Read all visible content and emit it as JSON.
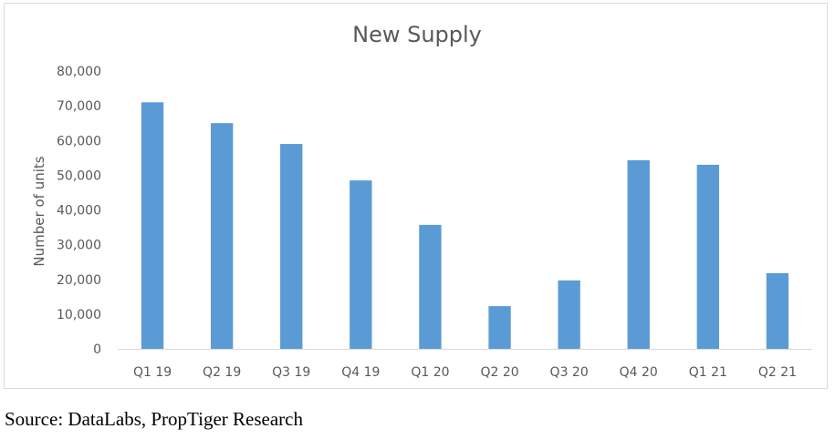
{
  "chart_data": {
    "type": "bar",
    "title": "New Supply",
    "xlabel": "",
    "ylabel": "Number of units",
    "categories": [
      "Q1 19",
      "Q2 19",
      "Q3 19",
      "Q4 19",
      "Q1 20",
      "Q2 20",
      "Q3 20",
      "Q4 20",
      "Q1 21",
      "Q2 21"
    ],
    "values": [
      71000,
      65000,
      59000,
      48500,
      35700,
      12300,
      19700,
      54300,
      53000,
      21800
    ],
    "ylim": [
      0,
      80000
    ],
    "yticks": [
      0,
      10000,
      20000,
      30000,
      40000,
      50000,
      60000,
      70000,
      80000
    ],
    "ytick_labels": [
      "0",
      "10,000",
      "20,000",
      "30,000",
      "40,000",
      "50,000",
      "60,000",
      "70,000",
      "80,000"
    ],
    "grid": false,
    "legend": "none",
    "bar_color": "#5b9bd5"
  },
  "source": "Source: DataLabs, PropTiger Research"
}
